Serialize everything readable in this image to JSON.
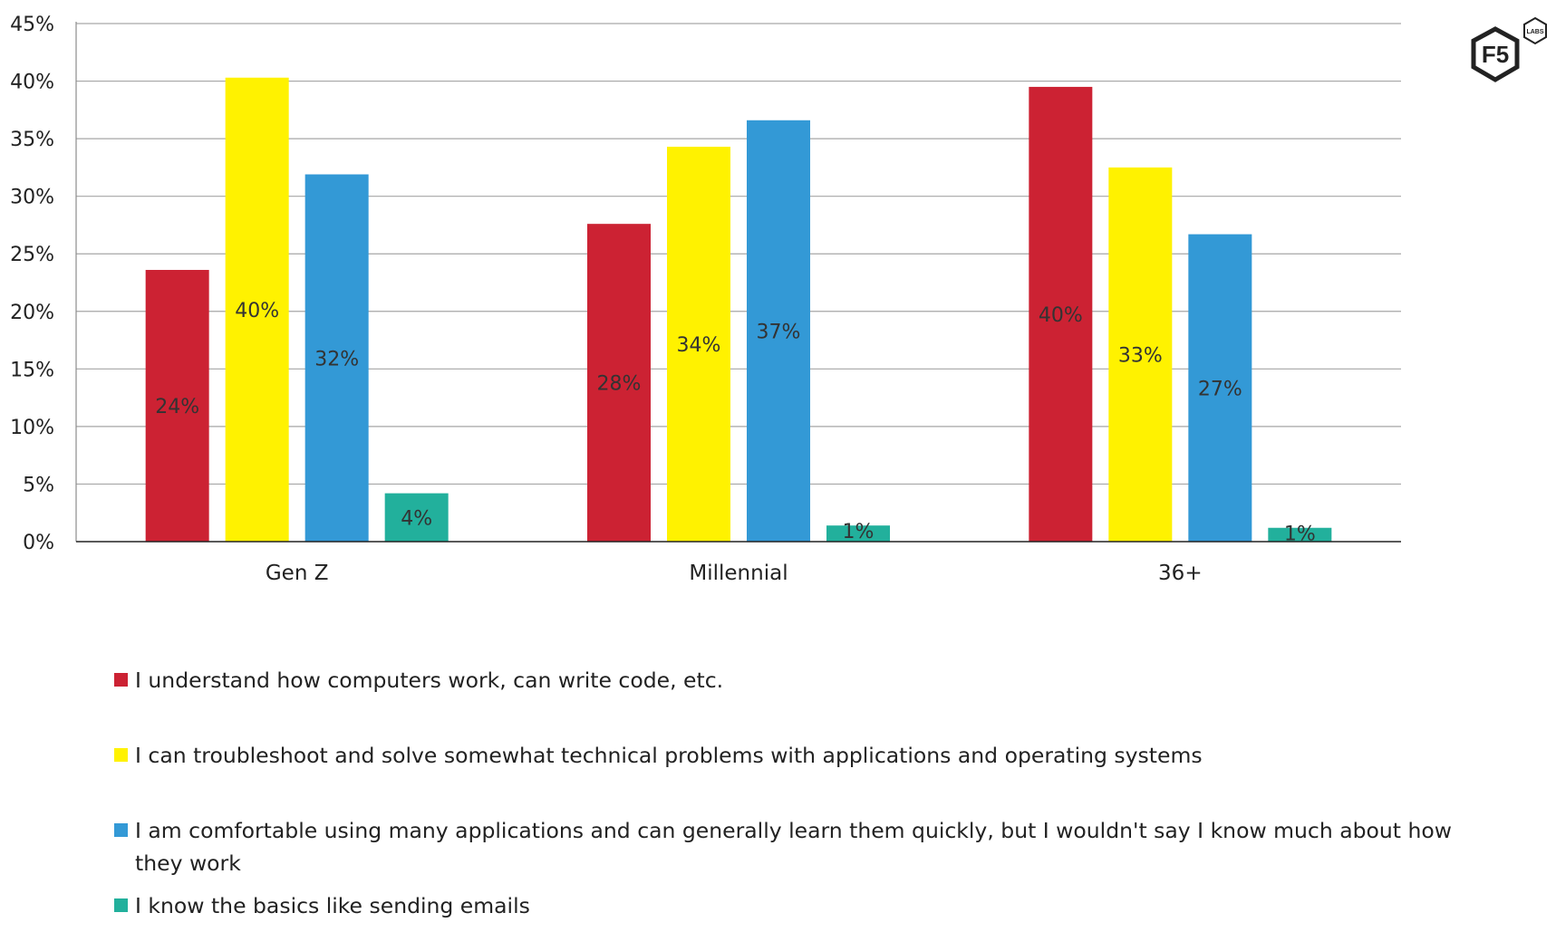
{
  "chart_data": {
    "type": "bar",
    "categories": [
      "Gen Z",
      "Millennial",
      "36+"
    ],
    "series": [
      {
        "name": "I understand how computers work, can write code, etc.",
        "color": "#cc2233",
        "values": [
          23.6,
          27.6,
          39.5
        ],
        "labels": [
          "24%",
          "28%",
          "40%"
        ]
      },
      {
        "name": "I can troubleshoot and solve somewhat technical problems with applications and operating systems",
        "color": "#fff200",
        "values": [
          40.3,
          34.3,
          32.5
        ],
        "labels": [
          "40%",
          "34%",
          "33%"
        ]
      },
      {
        "name": "I am comfortable using many applications and can generally learn them quickly, but I wouldn't say I know much about how they work",
        "color": "#3399d6",
        "values": [
          31.9,
          36.6,
          26.7
        ],
        "labels": [
          "32%",
          "37%",
          "27%"
        ]
      },
      {
        "name": "I know the basics like sending emails",
        "color": "#22b09c",
        "values": [
          4.2,
          1.4,
          1.2
        ],
        "labels": [
          "4%",
          "1%",
          "1%"
        ]
      }
    ],
    "yticks": [
      "0%",
      "5%",
      "10%",
      "15%",
      "20%",
      "25%",
      "30%",
      "35%",
      "40%",
      "45%"
    ],
    "ylim": [
      0,
      45
    ],
    "grid": true,
    "legend": "bottom"
  },
  "logo": {
    "main": "F5",
    "sub": "LABS"
  }
}
